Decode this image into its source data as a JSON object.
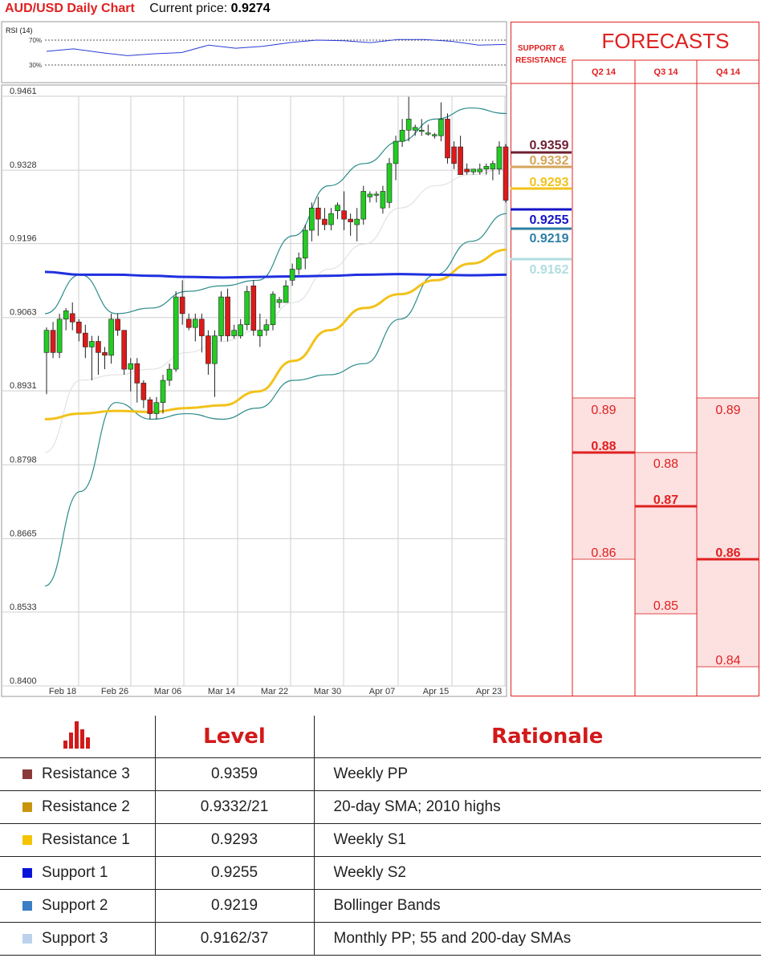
{
  "header": {
    "title": "AUD/USD Daily Chart",
    "current_price_label": "Current price:",
    "current_price": "0.9274"
  },
  "chart_data": {
    "type": "candlestick",
    "title": "AUD/USD Daily Chart",
    "y_ticks": [
      "0.9461",
      "0.9328",
      "0.9196",
      "0.9063",
      "0.8931",
      "0.8798",
      "0.8665",
      "0.8533",
      "0.8400"
    ],
    "ylim": [
      0.84,
      0.9461
    ],
    "x_ticks": [
      "Feb 18",
      "Feb 26",
      "Mar 06",
      "Mar 14",
      "Mar 22",
      "Mar 30",
      "Apr 07",
      "Apr 15",
      "Apr 23"
    ],
    "candles": [
      [
        0.9,
        0.9045,
        0.8925,
        0.904
      ],
      [
        0.904,
        0.9055,
        0.899,
        0.9
      ],
      [
        0.9,
        0.907,
        0.899,
        0.906
      ],
      [
        0.906,
        0.908,
        0.904,
        0.9075
      ],
      [
        0.907,
        0.909,
        0.904,
        0.9055
      ],
      [
        0.9055,
        0.906,
        0.902,
        0.9035
      ],
      [
        0.9035,
        0.905,
        0.899,
        0.901
      ],
      [
        0.901,
        0.903,
        0.895,
        0.902
      ],
      [
        0.902,
        0.903,
        0.896,
        0.9
      ],
      [
        0.9,
        0.901,
        0.897,
        0.8995
      ],
      [
        0.8995,
        0.907,
        0.898,
        0.906
      ],
      [
        0.906,
        0.907,
        0.903,
        0.904
      ],
      [
        0.904,
        0.904,
        0.896,
        0.897
      ],
      [
        0.897,
        0.899,
        0.893,
        0.898
      ],
      [
        0.898,
        0.899,
        0.891,
        0.8945
      ],
      [
        0.8945,
        0.895,
        0.89,
        0.8915
      ],
      [
        0.8915,
        0.892,
        0.888,
        0.889
      ],
      [
        0.889,
        0.892,
        0.888,
        0.891
      ],
      [
        0.891,
        0.896,
        0.889,
        0.895
      ],
      [
        0.895,
        0.898,
        0.894,
        0.897
      ],
      [
        0.897,
        0.911,
        0.8965,
        0.91
      ],
      [
        0.91,
        0.913,
        0.905,
        0.907
      ],
      [
        0.906,
        0.907,
        0.904,
        0.9045
      ],
      [
        0.9045,
        0.907,
        0.902,
        0.906
      ],
      [
        0.906,
        0.907,
        0.9,
        0.903
      ],
      [
        0.903,
        0.904,
        0.896,
        0.898
      ],
      [
        0.898,
        0.904,
        0.892,
        0.903
      ],
      [
        0.903,
        0.911,
        0.902,
        0.91
      ],
      [
        0.91,
        0.9115,
        0.902,
        0.903
      ],
      [
        0.903,
        0.905,
        0.9025,
        0.904
      ],
      [
        0.903,
        0.906,
        0.9025,
        0.905
      ],
      [
        0.905,
        0.912,
        0.904,
        0.911
      ],
      [
        0.912,
        0.913,
        0.903,
        0.904
      ],
      [
        0.903,
        0.907,
        0.901,
        0.904
      ],
      [
        0.904,
        0.906,
        0.903,
        0.905
      ],
      [
        0.905,
        0.911,
        0.904,
        0.9105
      ],
      [
        0.909,
        0.91,
        0.908,
        0.9095
      ],
      [
        0.909,
        0.913,
        0.909,
        0.912
      ],
      [
        0.913,
        0.916,
        0.912,
        0.915
      ],
      [
        0.915,
        0.918,
        0.914,
        0.917
      ],
      [
        0.917,
        0.923,
        0.915,
        0.922
      ],
      [
        0.922,
        0.927,
        0.92,
        0.926
      ],
      [
        0.926,
        0.928,
        0.921,
        0.924
      ],
      [
        0.924,
        0.926,
        0.922,
        0.923
      ],
      [
        0.923,
        0.926,
        0.922,
        0.925
      ],
      [
        0.9255,
        0.927,
        0.924,
        0.9265
      ],
      [
        0.9255,
        0.929,
        0.922,
        0.924
      ],
      [
        0.924,
        0.925,
        0.921,
        0.9235
      ],
      [
        0.923,
        0.926,
        0.92,
        0.924
      ],
      [
        0.924,
        0.93,
        0.923,
        0.929
      ],
      [
        0.928,
        0.929,
        0.927,
        0.9285
      ],
      [
        0.9285,
        0.929,
        0.927,
        0.9285
      ],
      [
        0.926,
        0.93,
        0.925,
        0.929
      ],
      [
        0.927,
        0.935,
        0.926,
        0.934
      ],
      [
        0.934,
        0.939,
        0.931,
        0.938
      ],
      [
        0.938,
        0.942,
        0.937,
        0.94
      ],
      [
        0.94,
        0.946,
        0.938,
        0.942
      ],
      [
        0.94,
        0.941,
        0.939,
        0.9405
      ],
      [
        0.94,
        0.942,
        0.939,
        0.94
      ],
      [
        0.9395,
        0.941,
        0.939,
        0.9395
      ],
      [
        0.939,
        0.9395,
        0.9385,
        0.9392
      ],
      [
        0.939,
        0.945,
        0.938,
        0.942
      ],
      [
        0.942,
        0.943,
        0.934,
        0.935
      ],
      [
        0.937,
        0.938,
        0.933,
        0.934
      ],
      [
        0.937,
        0.939,
        0.932,
        0.932
      ],
      [
        0.933,
        0.934,
        0.932,
        0.9325
      ],
      [
        0.9325,
        0.933,
        0.932,
        0.933
      ],
      [
        0.9325,
        0.934,
        0.932,
        0.933
      ],
      [
        0.933,
        0.934,
        0.932,
        0.9335
      ],
      [
        0.933,
        0.9345,
        0.931,
        0.934
      ],
      [
        0.933,
        0.938,
        0.932,
        0.937
      ],
      [
        0.937,
        0.9375,
        0.927,
        0.9274
      ]
    ],
    "lines": {
      "sma_200": {
        "color": "#1f2fe0",
        "values": [
          0.9145,
          0.914,
          0.914,
          0.9138,
          0.9136,
          0.9135,
          0.9136,
          0.9137,
          0.9138,
          0.914,
          0.9141,
          0.914,
          0.9139,
          0.914
        ]
      },
      "sma_55": {
        "color": "#f2c21a",
        "values": [
          0.888,
          0.889,
          0.8895,
          0.8893,
          0.89,
          0.8905,
          0.893,
          0.8985,
          0.904,
          0.908,
          0.9105,
          0.913,
          0.916,
          0.9185
        ]
      },
      "sma_20": {
        "color": "#dddddd",
        "values": [
          0.882,
          0.895,
          0.896,
          0.897,
          0.9,
          0.902,
          0.904,
          0.909,
          0.915,
          0.9195,
          0.926,
          0.93,
          0.932,
          0.933
        ]
      },
      "bb_upper": {
        "color": "#2a8a8a",
        "values": [
          0.907,
          0.914,
          0.907,
          0.908,
          0.911,
          0.912,
          0.913,
          0.921,
          0.93,
          0.934,
          0.938,
          0.942,
          0.944,
          0.943
        ]
      },
      "bb_lower": {
        "color": "#2a8a8a",
        "values": [
          0.858,
          0.875,
          0.891,
          0.888,
          0.889,
          0.888,
          0.89,
          0.895,
          0.896,
          0.898,
          0.906,
          0.914,
          0.92,
          0.925
        ]
      }
    },
    "rsi": {
      "label": "RSI (14)",
      "levels": [
        "70%",
        "30%"
      ],
      "values": [
        52,
        56,
        50,
        45,
        48,
        50,
        62,
        57,
        60,
        66,
        70,
        69,
        66,
        71,
        71,
        68,
        62,
        63
      ]
    }
  },
  "sr_levels": [
    {
      "value": "0.9359",
      "color": "#6e1f33",
      "price": 0.9359
    },
    {
      "value": "0.9332",
      "color": "#d4a55a",
      "price": 0.9332
    },
    {
      "value": "0.9293",
      "color": "#f2c21a",
      "price": 0.9293
    },
    {
      "value": "0.9255",
      "color": "#1414c8",
      "price": 0.9255
    },
    {
      "value": "0.9219",
      "color": "#2c7fa6",
      "price": 0.9219
    },
    {
      "value": "0.9162",
      "color": "#b0dede",
      "price": 0.9162
    }
  ],
  "forecasts": {
    "title": "FORECASTS",
    "sr_header": "SUPPORT & RESISTANCE",
    "quarters": [
      {
        "label": "Q2 14",
        "high": "0.89",
        "mid": "0.88",
        "low": "0.86"
      },
      {
        "label": "Q3 14",
        "high": "0.88",
        "mid": "0.87",
        "low": "0.85"
      },
      {
        "label": "Q4 14",
        "high": "0.89",
        "mid": "0.86",
        "low": "0.84"
      }
    ]
  },
  "table": {
    "headers": [
      "Level",
      "Rationale"
    ],
    "rows": [
      {
        "name": "Resistance 3",
        "level": "0.9359",
        "rationale": "Weekly PP",
        "color": "#8b3a3a"
      },
      {
        "name": "Resistance 2",
        "level": "0.9332/21",
        "rationale": "20-day SMA; 2010 highs",
        "color": "#c8960c"
      },
      {
        "name": "Resistance 1",
        "level": "0.9293",
        "rationale": "Weekly S1",
        "color": "#f5c400"
      },
      {
        "name": "Support 1",
        "level": "0.9255",
        "rationale": "Weekly S2",
        "color": "#0a14d8"
      },
      {
        "name": "Support 2",
        "level": "0.9219",
        "rationale": "Bollinger Bands",
        "color": "#3b7fc4"
      },
      {
        "name": "Support 3",
        "level": "0.9162/37",
        "rationale": "Monthly PP; 55 and 200-day SMAs",
        "color": "#bcd2ec"
      }
    ]
  }
}
